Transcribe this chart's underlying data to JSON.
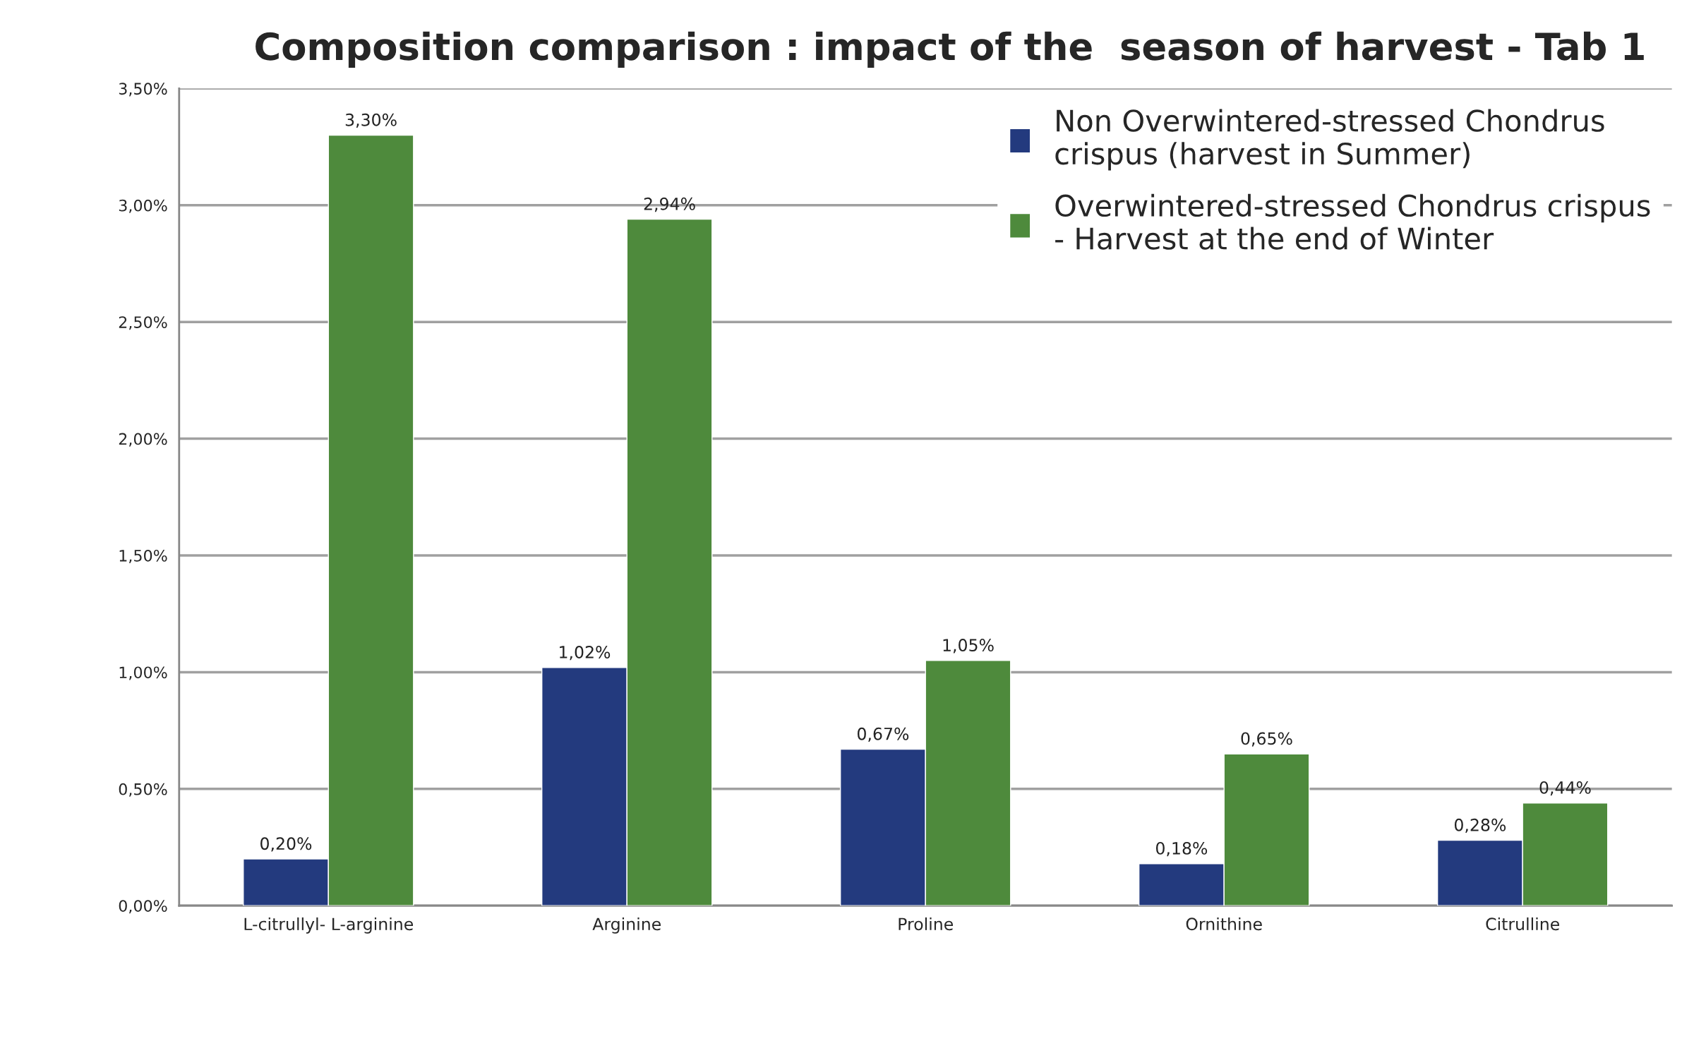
{
  "chart_data": {
    "type": "bar",
    "title": "Composition comparison : impact of the  season of harvest - Tab 1",
    "categories": [
      "L-citrullyl- L-arginine",
      "Arginine",
      "Proline",
      "Ornithine",
      "Citrulline"
    ],
    "series": [
      {
        "name": "Non Overwintered-stressed Chondrus crispus (harvest in Summer)",
        "color": "#233a7e",
        "values": [
          0.2,
          1.02,
          0.67,
          0.18,
          0.28
        ],
        "value_labels": [
          "0,20%",
          "1,02%",
          "0,67%",
          "0,18%",
          "0,28%"
        ]
      },
      {
        "name": "Overwintered-stressed Chondrus crispus - Harvest at the end of Winter",
        "color": "#4e8a3c",
        "values": [
          3.3,
          2.94,
          1.05,
          0.65,
          0.44
        ],
        "value_labels": [
          "3,30%",
          "2,94%",
          "1,05%",
          "0,65%",
          "0,44%"
        ]
      }
    ],
    "ylim": [
      0,
      3.5
    ],
    "yticks": [
      {
        "value": 0,
        "label": "0,00%"
      },
      {
        "value": 0.5,
        "label": "0,50%"
      },
      {
        "value": 1.0,
        "label": "1,00%"
      },
      {
        "value": 1.5,
        "label": "1,50%"
      },
      {
        "value": 2.0,
        "label": "2,00%"
      },
      {
        "value": 2.5,
        "label": "2,50%"
      },
      {
        "value": 3.0,
        "label": "3,00%"
      },
      {
        "value": 3.5,
        "label": "3,50%"
      }
    ],
    "grid": "y",
    "legend": "top right"
  }
}
